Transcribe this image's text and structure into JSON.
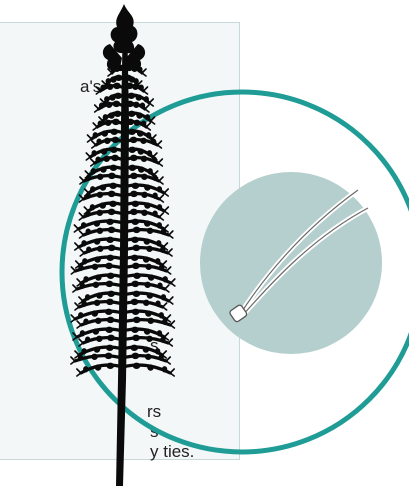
{
  "card_text": {
    "line_1": "a's",
    "line_2": "s",
    "line_3": "rs",
    "line_4": "s",
    "line_5": "y ties."
  },
  "colors": {
    "ring": "#1f9c95",
    "needle_disc": "#b4cfcd",
    "card_bg": "#f3f7f7",
    "card_border": "#c8d8d8",
    "tree": "#0a0a0a"
  },
  "icons": {
    "tree": "pine-tree-silhouette-icon",
    "needle": "pine-needle-icon"
  }
}
